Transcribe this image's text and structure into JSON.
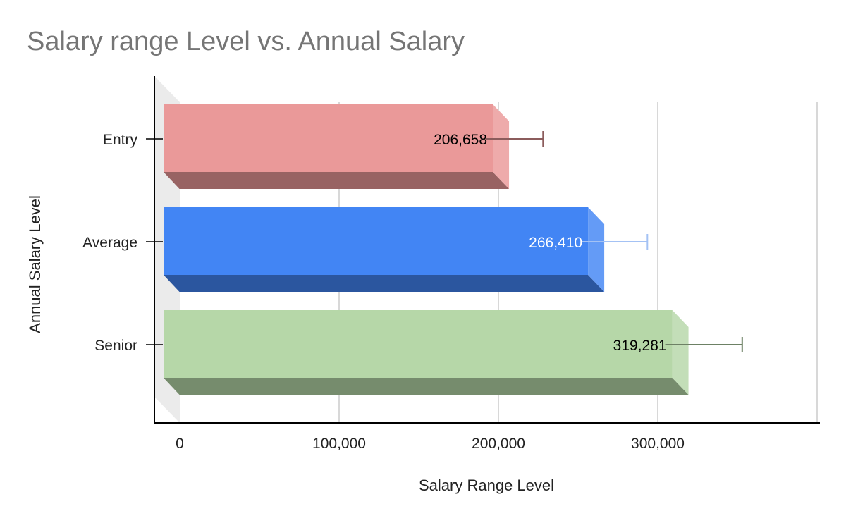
{
  "chart_data": {
    "type": "bar",
    "orientation": "horizontal",
    "style": "3d",
    "title": "Salary range Level vs. Annual Salary",
    "xlabel": "Salary Range Level",
    "ylabel": "Annual Salary Level",
    "categories": [
      "Entry",
      "Average",
      "Senior"
    ],
    "values": [
      206658,
      266410,
      319281
    ],
    "data_labels": [
      "206,658",
      "266,410",
      "319,281"
    ],
    "error_bar_high": [
      228000,
      293500,
      353000
    ],
    "colors": [
      "#ea9999",
      "#4285f4",
      "#b6d7a8"
    ],
    "label_colors": [
      "#000000",
      "#ffffff",
      "#000000"
    ],
    "xlim": [
      0,
      400000
    ],
    "xticks": [
      0,
      100000,
      200000,
      300000
    ],
    "xtick_labels": [
      "0",
      "100,000",
      "200,000",
      "300,000"
    ],
    "grid": true,
    "legend": "none"
  }
}
